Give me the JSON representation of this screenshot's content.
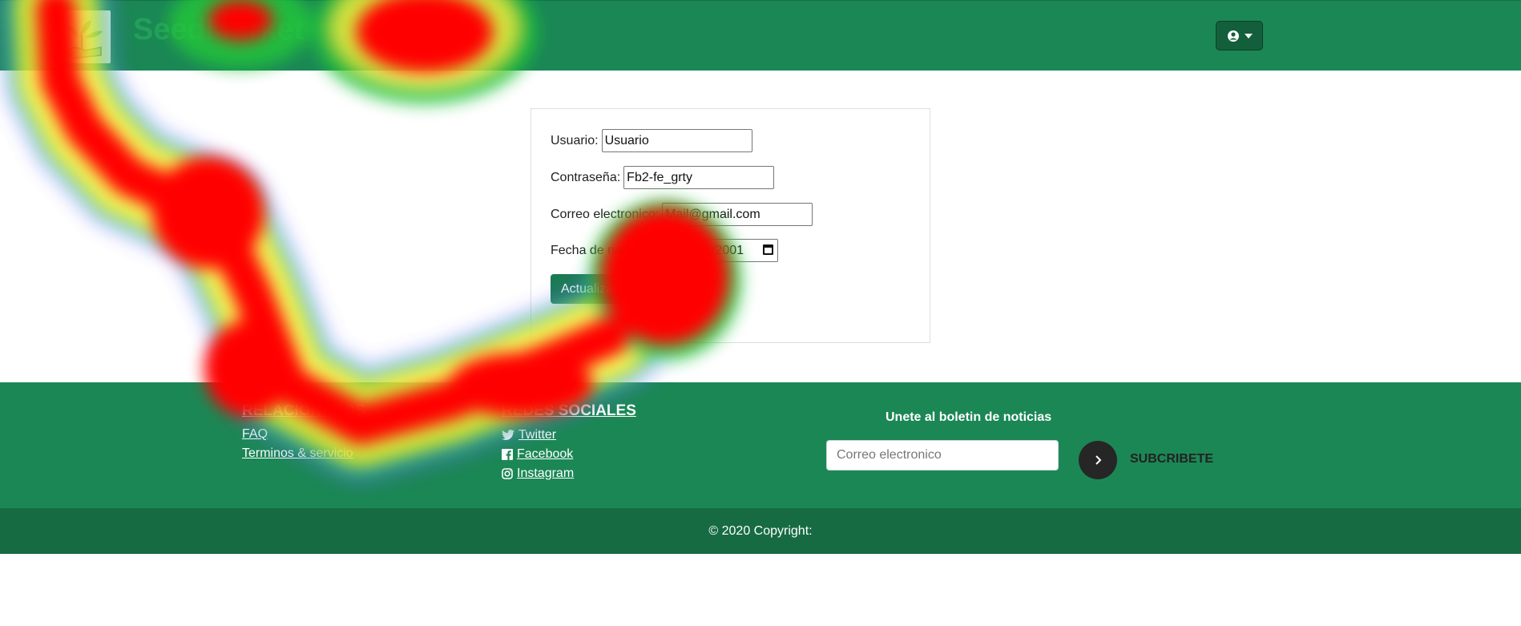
{
  "navbar": {
    "brand": "SeedMarket",
    "user_menu_icon": "user-circle-icon",
    "dropdown_icon": "caret-down-icon"
  },
  "form": {
    "usuario_label": "Usuario:",
    "usuario_value": "Usuario",
    "password_label": "Contraseña:",
    "password_value": "Fb2-fe_grty",
    "email_label": "Correo electronico:",
    "email_value": "Mail@gmail.com",
    "birth_label": "Fecha de nacimiento:",
    "birth_value": "01/01/2001",
    "submit_label": "Actualizar"
  },
  "footer": {
    "links_title": "RELACIONADOS",
    "links": [
      "FAQ",
      "Terminos & servicio"
    ],
    "social_title": "REDES SOCIALES",
    "social": [
      {
        "label": "Twitter",
        "icon": "twitter-icon"
      },
      {
        "label": "Facebook",
        "icon": "facebook-icon"
      },
      {
        "label": "Instagram",
        "icon": "instagram-icon"
      }
    ],
    "newsletter_title": "Unete al boletin de noticias",
    "newsletter_placeholder": "Correo electronico",
    "subscribe_label": "SUBCRIBETE",
    "copyright": "© 2020 Copyright:"
  },
  "colors": {
    "primary_green": "#1b8755",
    "dark_green": "#176b43",
    "button_green": "#1b7a52"
  }
}
